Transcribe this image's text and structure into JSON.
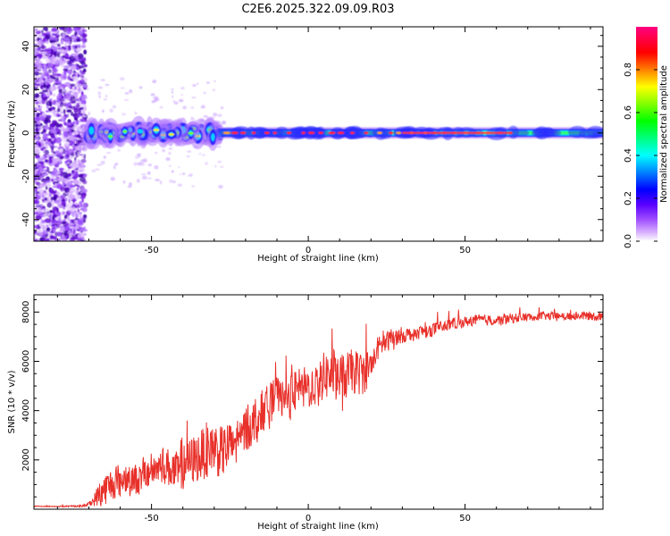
{
  "chart_data": [
    {
      "type": "heatmap",
      "title": "C2E6.2025.322.09.09.R03",
      "xlabel": "Height of straight line (km)",
      "ylabel": "Frequency (Hz)",
      "xlim": [
        -87.5,
        94
      ],
      "ylim": [
        -50,
        49
      ],
      "xticks": [
        -50,
        0,
        50
      ],
      "yticks": [
        -40,
        -20,
        0,
        20,
        40
      ],
      "colorbar": {
        "label": "Normalized spectral amplitude",
        "range": [
          0,
          1
        ],
        "ticks": [
          "0.0",
          "0.2",
          "0.4",
          "0.6",
          "0.8"
        ],
        "colors": [
          "#ffffff",
          "#d9b3ff",
          "#8a2be2",
          "#3d00ff",
          "#0000ff",
          "#0080ff",
          "#00ffff",
          "#00ff80",
          "#00ff00",
          "#80ff00",
          "#ffff00",
          "#ff8000",
          "#ff0000",
          "#ff0080"
        ]
      },
      "features": {
        "noise_region_x": [
          -87.5,
          -71
        ],
        "noise_freq_range": [
          -50,
          49
        ],
        "band_center_hz": 0,
        "broad_band_x": [
          -70,
          -28
        ],
        "narrow_band_x": [
          -28,
          94
        ]
      }
    },
    {
      "type": "line",
      "xlabel": "Height of straight line (km)",
      "ylabel": "SNR (10 * v/v)",
      "xlim": [
        -87.5,
        94
      ],
      "ylim": [
        0,
        8700
      ],
      "xticks": [
        -50,
        0,
        50
      ],
      "yticks": [
        2000,
        4000,
        6000,
        8000
      ],
      "series": [
        {
          "name": "SNR",
          "color": "#e8302a",
          "x": [
            -87.5,
            -80,
            -72,
            -69,
            -66,
            -62,
            -58,
            -54,
            -50,
            -46,
            -42,
            -38,
            -34,
            -31,
            -28,
            -24,
            -20,
            -16,
            -13,
            -10,
            -7,
            -4,
            -1,
            2,
            5,
            8,
            11,
            14,
            17,
            20,
            22,
            25,
            28,
            32,
            36,
            40,
            45,
            50,
            55,
            60,
            65,
            70,
            75,
            80,
            85,
            90,
            94
          ],
          "values": [
            120,
            110,
            130,
            280,
            700,
            1100,
            1300,
            1200,
            1600,
            1800,
            1500,
            1900,
            2200,
            2600,
            2300,
            2600,
            3200,
            3800,
            4200,
            4600,
            4400,
            4800,
            4900,
            5000,
            5400,
            5500,
            5300,
            5600,
            5500,
            5800,
            6500,
            6800,
            7000,
            7100,
            7200,
            7300,
            7500,
            7600,
            7700,
            7650,
            7750,
            7800,
            7850,
            7800,
            7850,
            7850,
            7800
          ],
          "variation": [
            20,
            30,
            60,
            200,
            900,
            1000,
            900,
            900,
            1000,
            1100,
            1200,
            1400,
            1500,
            1700,
            1500,
            1500,
            1400,
            1300,
            1200,
            1100,
            1200,
            1200,
            1300,
            1200,
            1400,
            1500,
            1400,
            1300,
            1300,
            1100,
            700,
            600,
            500,
            400,
            400,
            400,
            350,
            300,
            300,
            300,
            300,
            250,
            250,
            250,
            250,
            250,
            250
          ]
        }
      ]
    }
  ]
}
